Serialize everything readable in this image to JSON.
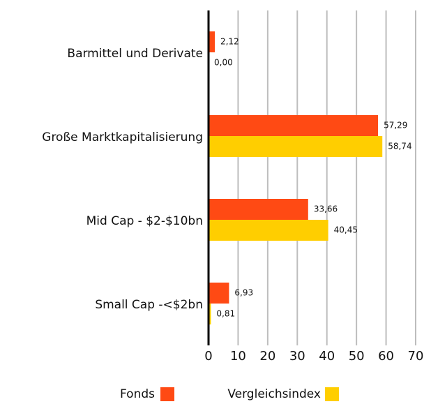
{
  "chart_data": {
    "type": "hbar",
    "categories": [
      "Barmittel und Derivate",
      "Große Marktkapitalisierung",
      "Mid Cap - $2-$10bn",
      "Small Cap -<$2bn"
    ],
    "series": [
      {
        "name": "Fonds",
        "color": "#ff4a14",
        "values": [
          2.12,
          57.29,
          33.66,
          6.93
        ],
        "value_labels": [
          "2,12",
          "57,29",
          "33,66",
          "6,93"
        ]
      },
      {
        "name": "Vergleichsindex",
        "color": "#ffce00",
        "values": [
          0.0,
          58.74,
          40.45,
          0.81
        ],
        "value_labels": [
          "0,00",
          "58,74",
          "40,45",
          "0,81"
        ]
      }
    ],
    "xlim": [
      0,
      70
    ],
    "xticks": [
      0,
      10,
      20,
      30,
      40,
      50,
      60,
      70
    ],
    "grid": true
  }
}
